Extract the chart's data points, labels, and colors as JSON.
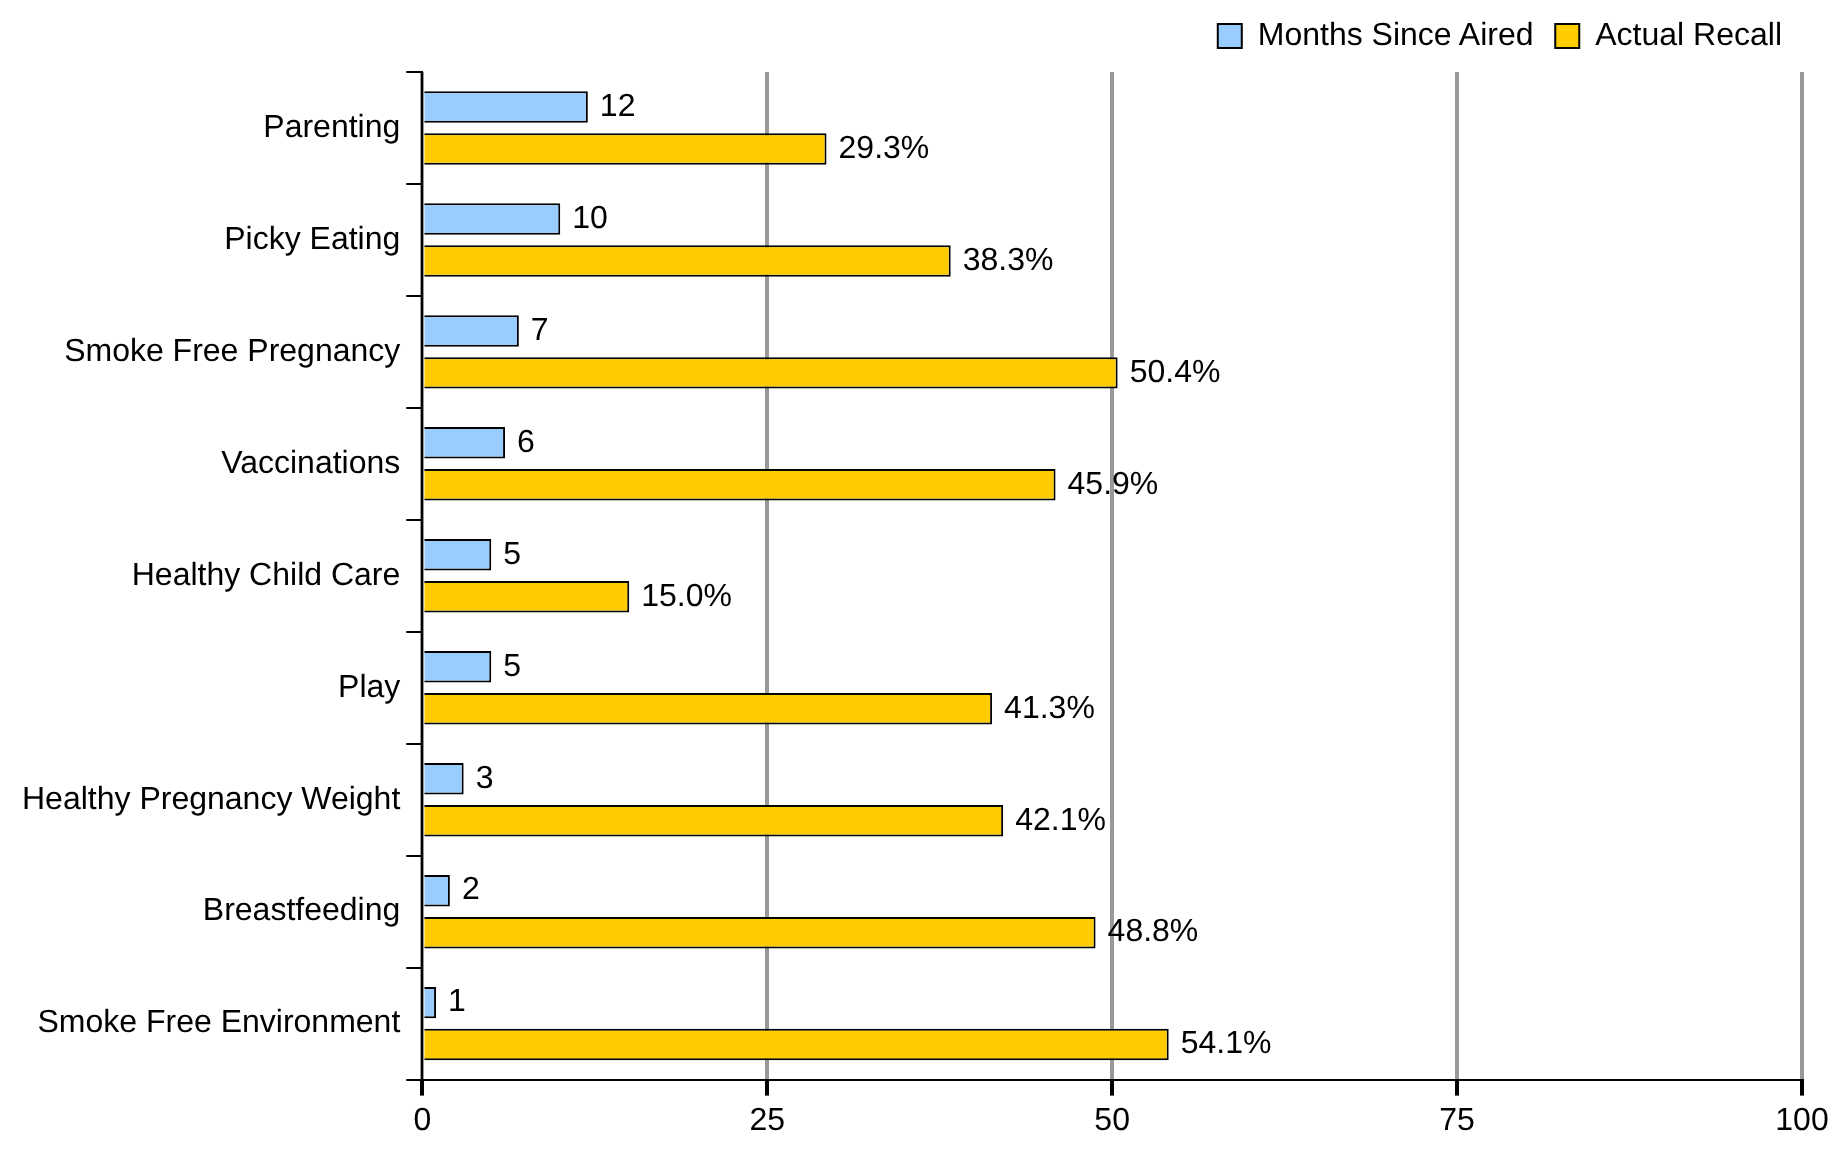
{
  "chart_data": {
    "type": "bar",
    "orientation": "horizontal",
    "categories": [
      "Parenting",
      "Picky Eating",
      "Smoke Free Pregnancy",
      "Vaccinations",
      "Healthy Child Care",
      "Play",
      "Healthy Pregnancy Weight",
      "Breastfeeding",
      "Smoke Free Environment"
    ],
    "series": [
      {
        "name": "Months Since Aired",
        "color": "#99ccff",
        "values": [
          12,
          10,
          7,
          6,
          5,
          5,
          3,
          2,
          1
        ],
        "value_labels": [
          "12",
          "10",
          "7",
          "6",
          "5",
          "5",
          "3",
          "2",
          "1"
        ]
      },
      {
        "name": "Actual Recall",
        "color": "#ffcc00",
        "values": [
          29.3,
          38.3,
          50.4,
          45.9,
          15.0,
          41.3,
          42.1,
          48.8,
          54.1
        ],
        "value_labels": [
          "29.3%",
          "38.3%",
          "50.4%",
          "45.9%",
          "15.0%",
          "41.3%",
          "42.1%",
          "48.8%",
          "54.1%"
        ]
      }
    ],
    "xlim": [
      0,
      100
    ],
    "xticks": [
      0,
      25,
      50,
      75,
      100
    ],
    "grid": "x",
    "legend": "top right"
  }
}
